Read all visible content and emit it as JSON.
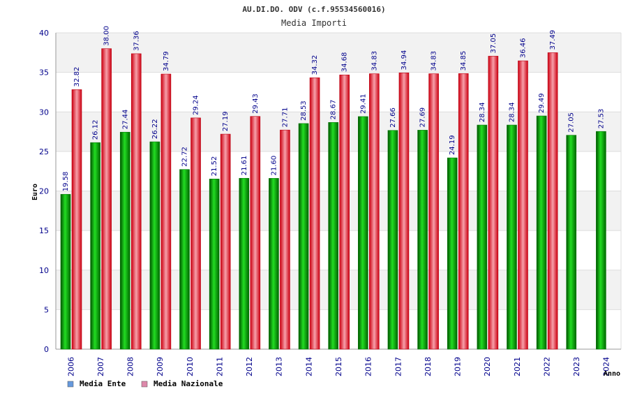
{
  "chart_data": {
    "type": "bar",
    "title": "AU.DI.DO. ODV (c.f.95534560016)",
    "subtitle": "Media Importi",
    "xlabel": "Anno",
    "ylabel": "Euro",
    "ylim": [
      0,
      40
    ],
    "yticks": [
      "0",
      "5",
      "10",
      "15",
      "20",
      "25",
      "30",
      "35",
      "40"
    ],
    "grid": "horizontal bands",
    "legend_position": "bottom-left",
    "categories": [
      "2006",
      "2007",
      "2008",
      "2009",
      "2010",
      "2011",
      "2012",
      "2013",
      "2014",
      "2015",
      "2016",
      "2017",
      "2018",
      "2019",
      "2020",
      "2021",
      "2022",
      "2023",
      "2024"
    ],
    "series": [
      {
        "name": "Media Ente",
        "color": "#00aa00",
        "legend_color": "#6699dd",
        "values": [
          19.58,
          26.12,
          27.44,
          26.22,
          22.72,
          21.52,
          21.61,
          21.6,
          28.53,
          28.67,
          29.41,
          27.66,
          27.69,
          24.19,
          28.34,
          28.34,
          29.49,
          27.05,
          27.53
        ],
        "labels": [
          "19.58",
          "26.12",
          "27.44",
          "26.22",
          "22.72",
          "21.52",
          "21.61",
          "21.60",
          "28.53",
          "28.67",
          "29.41",
          "27.66",
          "27.69",
          "24.19",
          "28.34",
          "28.34",
          "29.49",
          "27.05",
          "27.53"
        ]
      },
      {
        "name": "Media Nazionale",
        "color": "#ee2233",
        "legend_color": "#dd88aa",
        "values": [
          32.82,
          38.0,
          37.36,
          34.79,
          29.24,
          27.19,
          29.43,
          27.71,
          34.32,
          34.68,
          34.83,
          34.94,
          34.83,
          34.85,
          37.05,
          36.46,
          37.49,
          null,
          null
        ],
        "labels": [
          "32.82",
          "38.00",
          "37.36",
          "34.79",
          "29.24",
          "27.19",
          "29.43",
          "27.71",
          "34.32",
          "34.68",
          "34.83",
          "34.94",
          "34.83",
          "34.85",
          "37.05",
          "36.46",
          "37.49",
          null,
          null
        ]
      }
    ]
  }
}
